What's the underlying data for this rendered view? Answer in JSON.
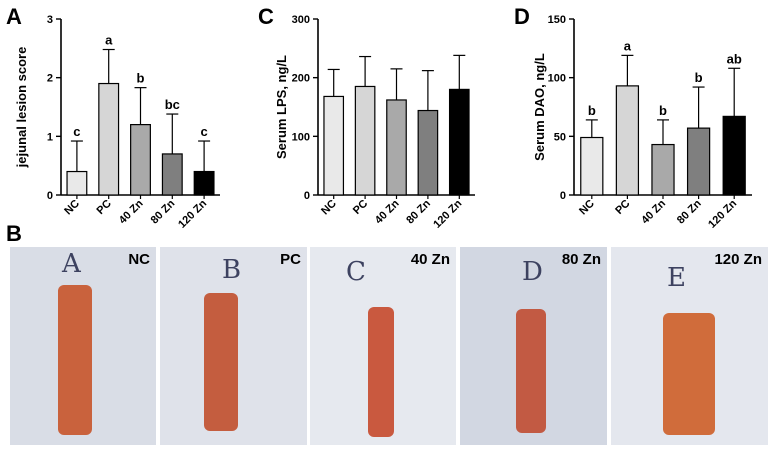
{
  "panel_letters": [
    "A",
    "B",
    "C",
    "D"
  ],
  "chart_data": [
    {
      "panel": "A",
      "type": "bar",
      "categories": [
        "NC",
        "PC",
        "40 Zn",
        "80 Zn",
        "120 Zn"
      ],
      "values": [
        0.4,
        1.9,
        1.2,
        0.7,
        0.4
      ],
      "errors": [
        0.52,
        0.58,
        0.63,
        0.68,
        0.52
      ],
      "significance": [
        "c",
        "a",
        "b",
        "bc",
        "c"
      ],
      "ylabel": "jejunal lesion score",
      "ylim": [
        0,
        3
      ],
      "yticks": [
        0,
        1,
        2,
        3
      ],
      "bar_colors": [
        "#e9e9e9",
        "#d6d6d6",
        "#a9a9a9",
        "#7f7f7f",
        "#000000"
      ]
    },
    {
      "panel": "C",
      "type": "bar",
      "categories": [
        "NC",
        "PC",
        "40 Zn",
        "80 Zn",
        "120 Zn"
      ],
      "values": [
        168,
        185,
        162,
        144,
        180
      ],
      "errors": [
        46,
        51,
        53,
        68,
        58
      ],
      "significance": [
        "",
        "",
        "",
        "",
        ""
      ],
      "ylabel": "Serum LPS, ng/L",
      "ylim": [
        0,
        300
      ],
      "yticks": [
        0,
        100,
        200,
        300
      ],
      "bar_colors": [
        "#e9e9e9",
        "#d6d6d6",
        "#a9a9a9",
        "#7f7f7f",
        "#000000"
      ]
    },
    {
      "panel": "D",
      "type": "bar",
      "categories": [
        "NC",
        "PC",
        "40 Zn",
        "80 Zn",
        "120 Zn"
      ],
      "values": [
        49,
        93,
        43,
        57,
        67
      ],
      "errors": [
        15,
        26,
        21,
        35,
        41
      ],
      "significance": [
        "b",
        "a",
        "b",
        "b",
        "ab"
      ],
      "ylabel": "Serum DAO, ng/L",
      "ylim": [
        0,
        150
      ],
      "yticks": [
        0,
        50,
        100,
        150
      ],
      "bar_colors": [
        "#e9e9e9",
        "#d6d6d6",
        "#a9a9a9",
        "#7f7f7f",
        "#000000"
      ]
    }
  ],
  "photos": [
    {
      "handwritten": "A",
      "label": "NC",
      "bg": "#d9dde6",
      "tissue": "#c9623d"
    },
    {
      "handwritten": "B",
      "label": "PC",
      "bg": "#dfe2ea",
      "tissue": "#c45d3f"
    },
    {
      "handwritten": "C",
      "label": "40 Zn",
      "bg": "#e6e9ef",
      "tissue": "#c9593f"
    },
    {
      "handwritten": "D",
      "label": "80 Zn",
      "bg": "#d2d7e2",
      "tissue": "#c25a43"
    },
    {
      "handwritten": "E",
      "label": "120 Zn",
      "bg": "#e4e7ee",
      "tissue": "#d06c3b"
    }
  ]
}
